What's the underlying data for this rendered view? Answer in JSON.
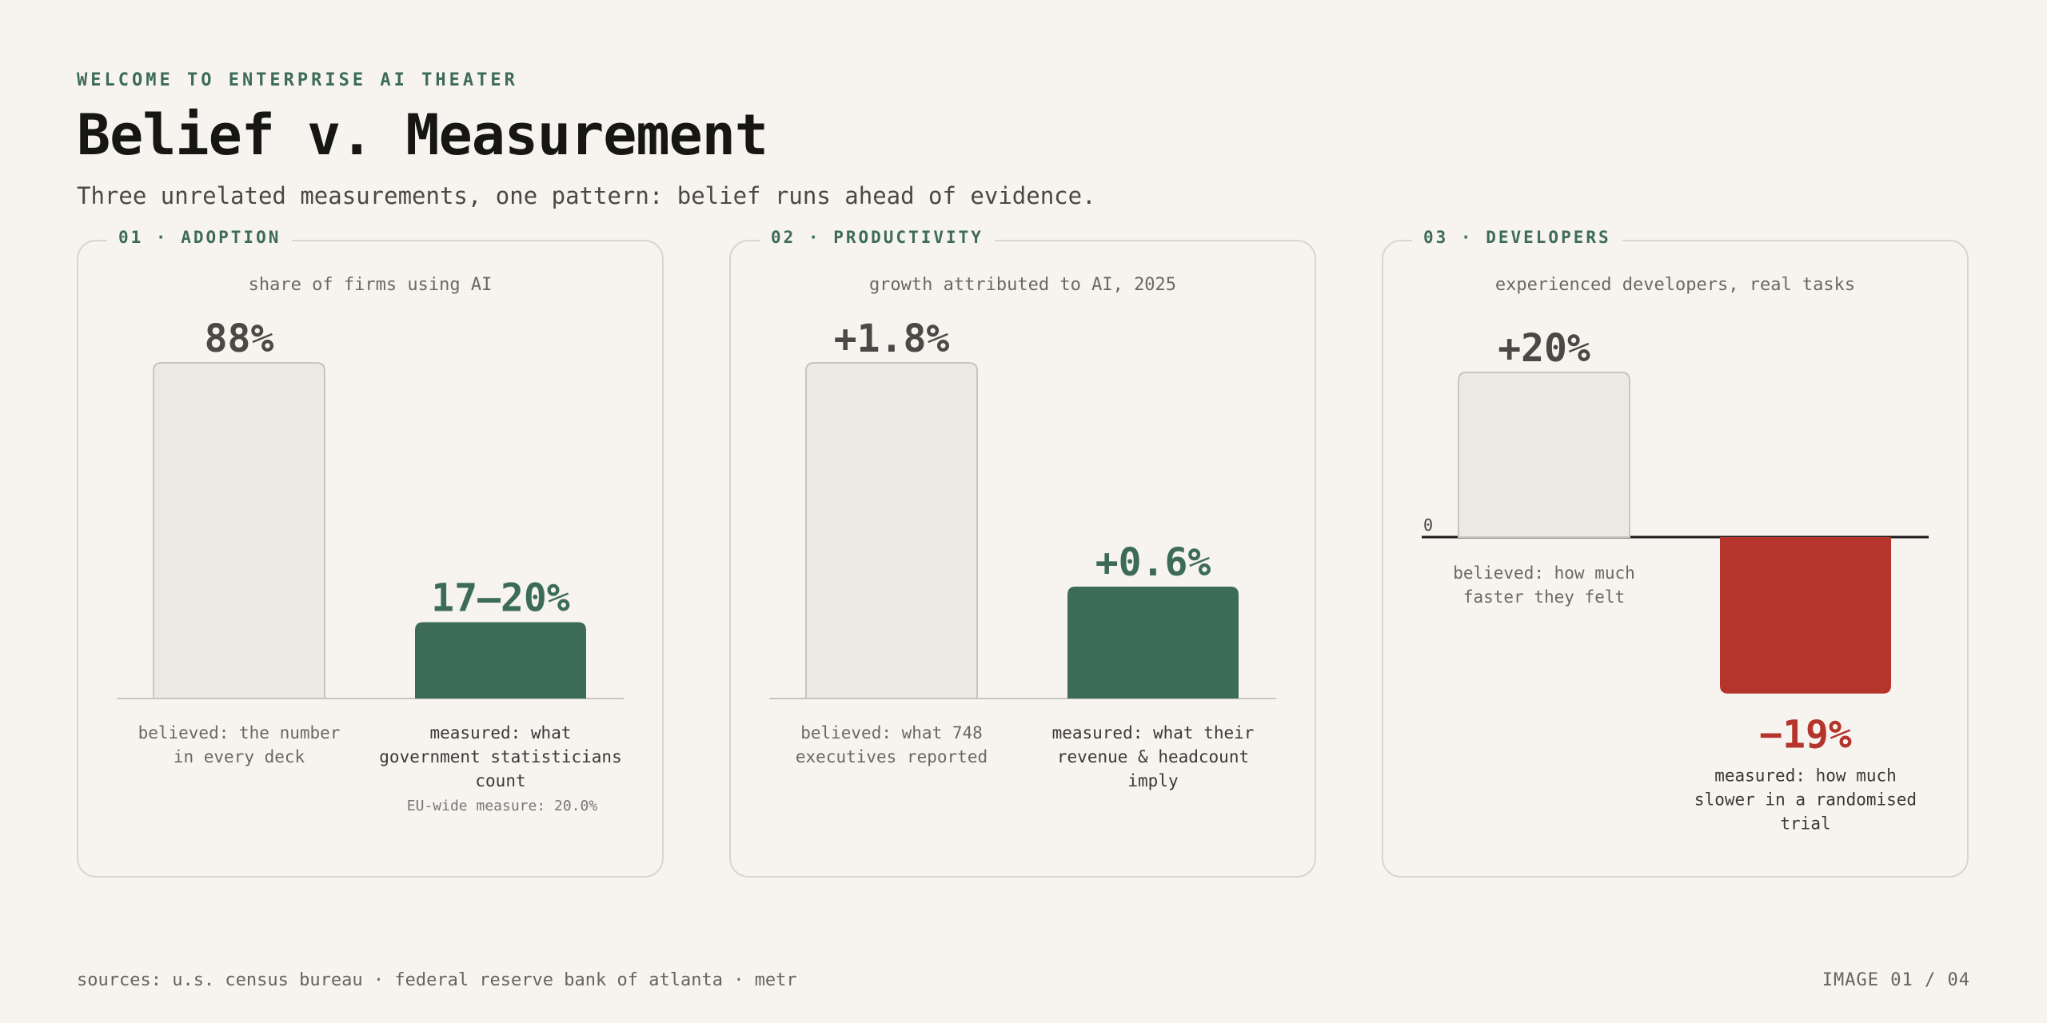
{
  "header": {
    "eyebrow": "WELCOME TO ENTERPRISE AI THEATER",
    "title": "Belief v. Measurement",
    "subtitle": "Three unrelated measurements, one pattern: belief runs ahead of evidence."
  },
  "colors": {
    "accent": "#3d6b5a",
    "believed_fill": "#ece8e2",
    "believed_stroke": "#c9c5be",
    "measured_fill": "#3d6b5a",
    "negative_fill": "#b5342c",
    "baseline": "#1a1a1a",
    "value_dark": "#4b4945"
  },
  "chart_data": [
    {
      "type": "bar",
      "label": "01 · ADOPTION",
      "title": "share of firms using AI",
      "categories": [
        "believed: the number in every deck",
        "measured: what government statisticians count"
      ],
      "value_labels": [
        "88%",
        "17–20%"
      ],
      "values": [
        88,
        20
      ],
      "note": "EU-wide measure: 20.0%",
      "ylim": [
        0,
        88
      ]
    },
    {
      "type": "bar",
      "label": "02 · PRODUCTIVITY",
      "title": "growth attributed to AI, 2025",
      "categories": [
        "believed: what 748 executives reported",
        "measured: what their revenue & headcount imply"
      ],
      "value_labels": [
        "+1.8%",
        "+0.6%"
      ],
      "values": [
        1.8,
        0.6
      ],
      "note": "",
      "ylim": [
        0,
        1.8
      ]
    },
    {
      "type": "bar",
      "label": "03 · DEVELOPERS",
      "title": "experienced developers, real tasks",
      "categories": [
        "believed: how much faster they felt",
        "measured: how much slower in a randomised trial"
      ],
      "value_labels": [
        "+20%",
        "−19%"
      ],
      "values": [
        20,
        -19
      ],
      "zero_label": "0",
      "note": "",
      "ylim": [
        -19,
        20
      ]
    }
  ],
  "footer": {
    "sources": "sources: u.s. census bureau · federal reserve bank of atlanta · metr",
    "page": "IMAGE 01 / 04"
  }
}
